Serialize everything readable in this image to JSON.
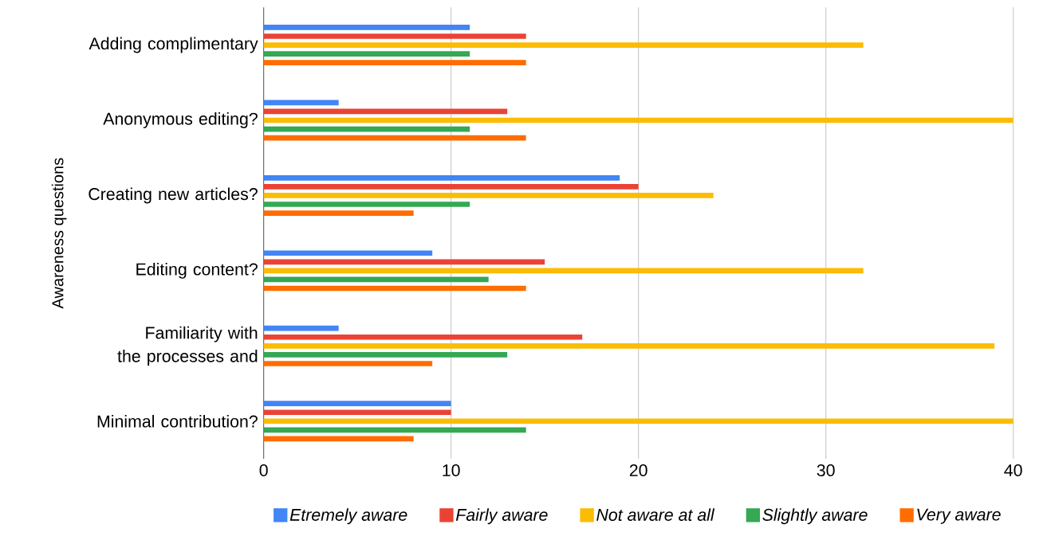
{
  "chart_data": {
    "type": "bar",
    "orientation": "horizontal",
    "ylabel": "Awareness questions",
    "categories": [
      "Adding complimentary",
      "Anonymous editing?",
      "Creating new articles?",
      "Editing content?",
      "Familiarity with the processes and",
      "Minimal contribution?"
    ],
    "series": [
      {
        "name": "Etremely aware",
        "color": "#4285f4",
        "values": [
          11,
          4,
          19,
          9,
          4,
          10
        ]
      },
      {
        "name": "Fairly aware",
        "color": "#ea4335",
        "values": [
          14,
          13,
          20,
          15,
          17,
          10
        ]
      },
      {
        "name": "Not aware at all",
        "color": "#fbbc04",
        "values": [
          32,
          40,
          24,
          32,
          39,
          40
        ]
      },
      {
        "name": "Slightly aware",
        "color": "#34a853",
        "values": [
          11,
          11,
          11,
          12,
          13,
          14
        ]
      },
      {
        "name": "Very aware",
        "color": "#ff6d01",
        "values": [
          14,
          14,
          8,
          14,
          9,
          8
        ]
      }
    ],
    "xlim": [
      0,
      40
    ],
    "xticks": [
      0,
      10,
      20,
      30,
      40
    ],
    "grid": "x",
    "legend": "bottom"
  }
}
